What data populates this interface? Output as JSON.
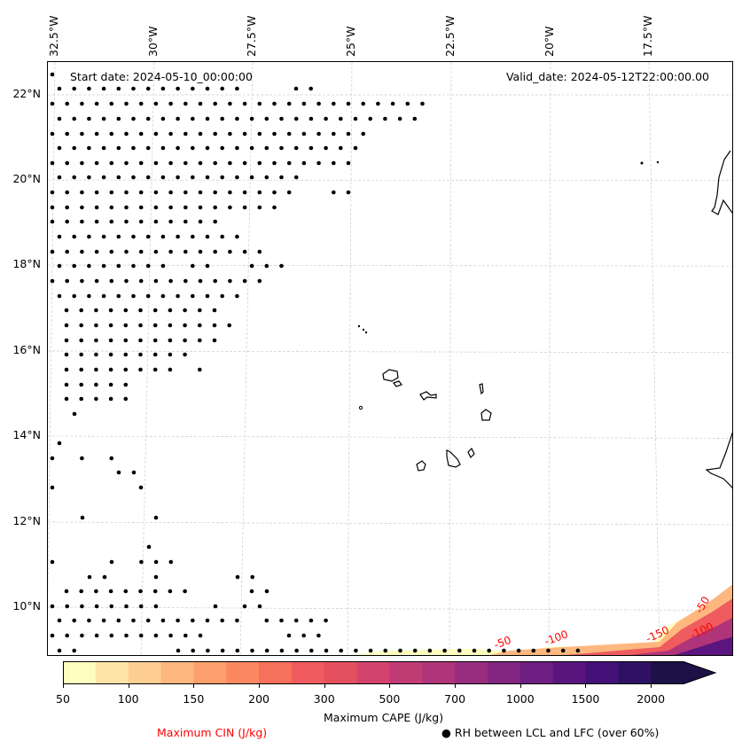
{
  "map": {
    "start_date": "Start date: 2024-05-10_00:00:00",
    "valid_date": "Valid_date: 2024-05-12T22:00:00.00",
    "lon_labels": [
      "32.5°W",
      "30°W",
      "27.5°W",
      "25°W",
      "22.5°W",
      "20°W",
      "17.5°W"
    ],
    "lat_labels": [
      "22°N",
      "20°N",
      "18°N",
      "16°N",
      "14°N",
      "12°N",
      "10°N"
    ],
    "cin_contour_labels": [
      "-50",
      "-100",
      "-150",
      "-100",
      "-50"
    ],
    "colors": {
      "cin_contour": "#ff0000",
      "coastline": "#000000",
      "gridline": "#cccccc",
      "dots": "#000000"
    }
  },
  "colorbar": {
    "title": "Maximum CAPE (J/kg)",
    "tick_labels": [
      "50",
      "100",
      "150",
      "200",
      "300",
      "500",
      "700",
      "1000",
      "1500",
      "2000"
    ],
    "levels": [
      50,
      75,
      100,
      125,
      150,
      175,
      200,
      250,
      300,
      400,
      500,
      600,
      700,
      850,
      1000,
      1250,
      1500,
      1750,
      2000
    ],
    "colors": [
      "#fcfdbf",
      "#fde5a7",
      "#fece91",
      "#feb77e",
      "#fd9f6c",
      "#fb8861",
      "#f7705c",
      "#ef5b5e",
      "#e3515f",
      "#d3436e",
      "#c13b75",
      "#b0347a",
      "#982d80",
      "#822681",
      "#6e1f81",
      "#5a167e",
      "#451077",
      "#2f1163",
      "#1d1147"
    ],
    "extend": "max"
  },
  "legend": {
    "cin_label": "Maximum CIN (J/kg)",
    "cin_color": "#ff0000",
    "rh_marker": "●",
    "rh_label": "RH between LCL and LFC (over 60%)"
  }
}
